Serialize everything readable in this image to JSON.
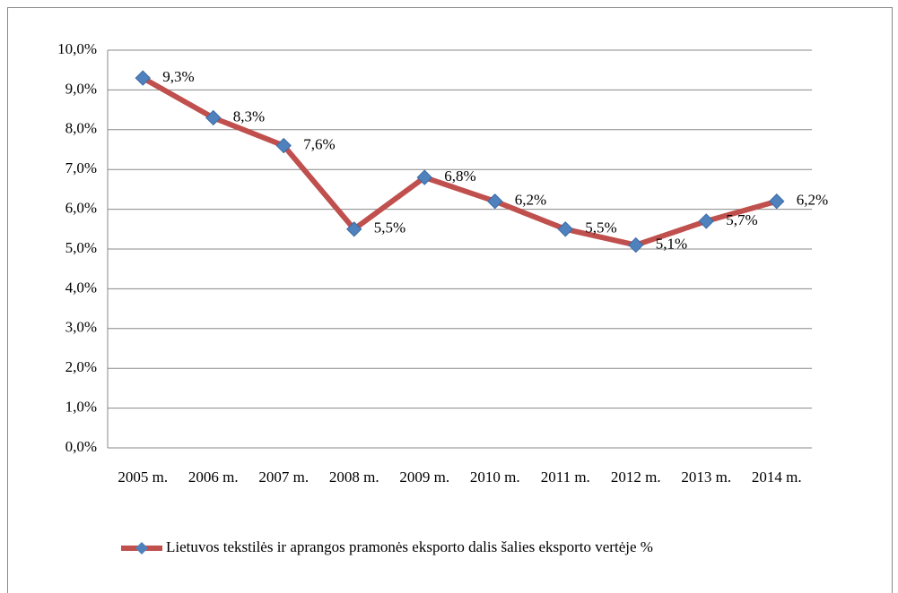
{
  "chart_data": {
    "type": "line",
    "categories": [
      "2005 m.",
      "2006 m.",
      "2007 m.",
      "2008 m.",
      "2009 m.",
      "2010 m.",
      "2011 m.",
      "2012 m.",
      "2013 m.",
      "2014 m."
    ],
    "series": [
      {
        "name": "Lietuvos tekstilės ir aprangos pramonės eksporto dalis šalies eksporto vertėje %",
        "color": "#c0504d",
        "marker_color": "#4f81bd",
        "values": [
          9.3,
          8.3,
          7.6,
          5.5,
          6.8,
          6.2,
          5.5,
          5.1,
          5.7,
          6.2
        ],
        "value_labels": [
          "9,3%",
          "8,3%",
          "7,6%",
          "5,5%",
          "6,8%",
          "6,2%",
          "5,5%",
          "5,1%",
          "5,7%",
          "6,2%"
        ]
      }
    ],
    "ylim": [
      0,
      10
    ],
    "yticks": [
      {
        "value": 0,
        "label": "0,0%"
      },
      {
        "value": 1,
        "label": "1,0%"
      },
      {
        "value": 2,
        "label": "2,0%"
      },
      {
        "value": 3,
        "label": "3,0%"
      },
      {
        "value": 4,
        "label": "4,0%"
      },
      {
        "value": 5,
        "label": "5,0%"
      },
      {
        "value": 6,
        "label": "6,0%"
      },
      {
        "value": 7,
        "label": "7,0%"
      },
      {
        "value": 8,
        "label": "8,0%"
      },
      {
        "value": 9,
        "label": "9,0%"
      },
      {
        "value": 10,
        "label": "10,0%"
      }
    ],
    "grid": true,
    "legend": "bottom"
  }
}
